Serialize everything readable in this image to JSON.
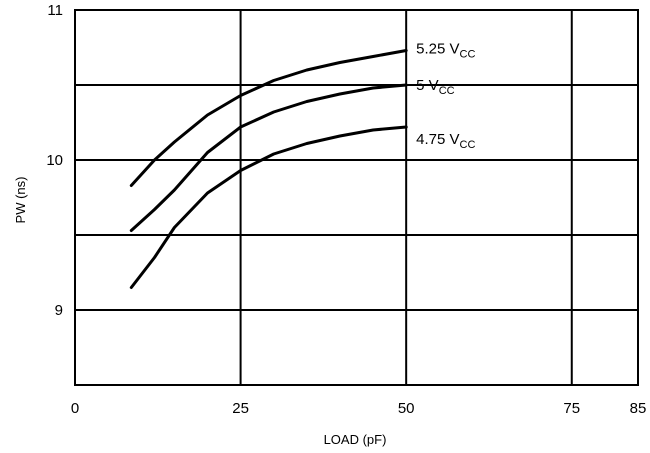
{
  "chart_data": {
    "type": "line",
    "xlabel": "LOAD (pF)",
    "ylabel": "PW (ns)",
    "xlim": [
      0,
      85
    ],
    "ylim": [
      8.5,
      11
    ],
    "x_ticks": [
      0,
      25,
      50,
      75,
      85
    ],
    "x_tick_labels": [
      "0",
      "25",
      "50",
      "75",
      "85"
    ],
    "y_ticks": [
      9,
      10,
      11
    ],
    "y_tick_labels": [
      "9",
      "10",
      "11"
    ],
    "grid": true,
    "grid_x": [
      25,
      50,
      75
    ],
    "grid_y": [
      9,
      9.5,
      10,
      10.5
    ],
    "line_color": "#000000",
    "series": [
      {
        "name_main": "5.25 V",
        "name_sub": "CC",
        "x": [
          8.5,
          12,
          15,
          20,
          25,
          30,
          35,
          40,
          45,
          50
        ],
        "y": [
          9.83,
          10.0,
          10.12,
          10.3,
          10.43,
          10.53,
          10.6,
          10.65,
          10.69,
          10.73
        ]
      },
      {
        "name_main": "5 V",
        "name_sub": "CC",
        "x": [
          8.5,
          12,
          15,
          20,
          25,
          30,
          35,
          40,
          45,
          50
        ],
        "y": [
          9.53,
          9.67,
          9.8,
          10.05,
          10.22,
          10.32,
          10.39,
          10.44,
          10.48,
          10.5
        ]
      },
      {
        "name_main": "4.75 V",
        "name_sub": "CC",
        "x": [
          8.5,
          12,
          15,
          20,
          25,
          30,
          35,
          40,
          45,
          50
        ],
        "y": [
          9.15,
          9.35,
          9.55,
          9.78,
          9.93,
          10.04,
          10.11,
          10.16,
          10.2,
          10.22
        ]
      }
    ]
  }
}
